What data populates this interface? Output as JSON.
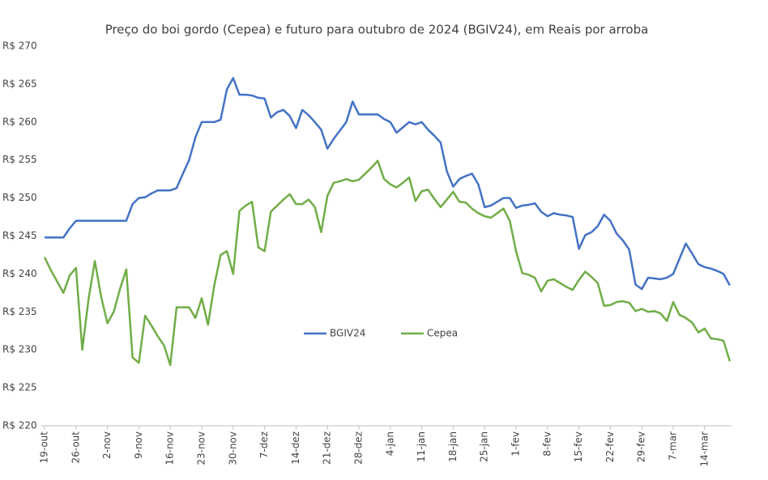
{
  "chart_data": {
    "type": "line",
    "title": "Preço do boi gordo (Cepea) e futuro para outubro de 2024 (BGIV24), em Reais por arroba",
    "categories": [
      "19-out",
      null,
      null,
      null,
      null,
      "26-out",
      null,
      null,
      null,
      null,
      "2-nov",
      null,
      null,
      null,
      null,
      "9-nov",
      null,
      null,
      null,
      null,
      "16-nov",
      null,
      null,
      null,
      null,
      "23-nov",
      null,
      null,
      null,
      null,
      "30-nov",
      null,
      null,
      null,
      null,
      "7-dez",
      null,
      null,
      null,
      null,
      "14-dez",
      null,
      null,
      null,
      null,
      "21-dez",
      null,
      null,
      null,
      null,
      "28-dez",
      null,
      null,
      null,
      null,
      "4-jan",
      null,
      null,
      null,
      null,
      "11-jan",
      null,
      null,
      null,
      null,
      "18-jan",
      null,
      null,
      null,
      null,
      "25-jan",
      null,
      null,
      null,
      null,
      "1-fev",
      null,
      null,
      null,
      null,
      "8-fev",
      null,
      null,
      null,
      null,
      "15-fev",
      null,
      null,
      null,
      null,
      "22-fev",
      null,
      null,
      null,
      null,
      "29-fev",
      null,
      null,
      null,
      null,
      "7-mar",
      null,
      null,
      null,
      null,
      "14-mar",
      null,
      null,
      null,
      null
    ],
    "series": [
      {
        "name": "BGIV24",
        "color": "#4472c4",
        "values": [
          244.8,
          244.8,
          244.8,
          244.8,
          246,
          247,
          247,
          247,
          247,
          247,
          247,
          247,
          247,
          247,
          249.2,
          250,
          250.1,
          250.6,
          251,
          251,
          251,
          251.3,
          253.2,
          255,
          258,
          260,
          260,
          260,
          260.3,
          264.3,
          265.8,
          263.6,
          263.6,
          263.5,
          263.2,
          263.1,
          260.6,
          261.3,
          261.6,
          260.8,
          259.2,
          261.6,
          260.9,
          260,
          259,
          256.5,
          257.8,
          258.9,
          260,
          262.7,
          261,
          261,
          261,
          261,
          260.4,
          260,
          258.6,
          259.3,
          260,
          259.7,
          260,
          259,
          258.2,
          257.3,
          253.5,
          251.5,
          252.5,
          252.9,
          253.2,
          251.8,
          248.8,
          249,
          249.5,
          250,
          250,
          248.7,
          249,
          249.1,
          249.3,
          248.2,
          247.6,
          248,
          247.8,
          247.7,
          247.5,
          243.3,
          245.1,
          245.5,
          246.3,
          247.8,
          247,
          245.3,
          244.4,
          243.2,
          238.6,
          238,
          239.5,
          239.4,
          239.3,
          239.5,
          240,
          242,
          244,
          242.7,
          241.3,
          240.9,
          240.7,
          240.4,
          240,
          238.5
        ]
      },
      {
        "name": "Cepea",
        "color": "#70ad47",
        "values": [
          242.2,
          240.5,
          239,
          237.5,
          239.8,
          240.8,
          230,
          236.7,
          241.7,
          237,
          233.5,
          235,
          238,
          240.6,
          229,
          228.3,
          234.5,
          233.2,
          231.8,
          230.6,
          228,
          235.6,
          235.6,
          235.6,
          234.2,
          236.8,
          233.3,
          238.5,
          242.5,
          243,
          240,
          248.3,
          249,
          249.5,
          243.5,
          243,
          248.2,
          249,
          249.8,
          250.5,
          249.2,
          249.2,
          249.8,
          248.8,
          245.5,
          250.3,
          252,
          252.2,
          252.5,
          252.2,
          252.4,
          253.2,
          254,
          254.9,
          252.5,
          251.8,
          251.4,
          252,
          252.7,
          249.6,
          250.9,
          251.1,
          249.9,
          248.8,
          249.8,
          250.8,
          249.5,
          249.4,
          248.6,
          248,
          247.6,
          247.4,
          248,
          248.6,
          247,
          243,
          240.1,
          239.9,
          239.5,
          237.7,
          239.1,
          239.3,
          238.8,
          238.3,
          237.9,
          239.2,
          240.3,
          239.6,
          238.8,
          235.8,
          235.9,
          236.3,
          236.4,
          236.2,
          235.1,
          235.4,
          235,
          235.1,
          234.8,
          233.8,
          236.3,
          234.6,
          234.2,
          233.6,
          232.3,
          232.8,
          231.5,
          231.4,
          231.2,
          228.5
        ]
      }
    ],
    "ylim": [
      220,
      270
    ],
    "yticks": [
      {
        "value": 220,
        "label": "R$ 220"
      },
      {
        "value": 225,
        "label": "R$ 225"
      },
      {
        "value": 230,
        "label": "R$ 230"
      },
      {
        "value": 235,
        "label": "R$ 235"
      },
      {
        "value": 240,
        "label": "R$ 240"
      },
      {
        "value": 245,
        "label": "R$ 245"
      },
      {
        "value": 250,
        "label": "R$ 250"
      },
      {
        "value": 255,
        "label": "R$ 255"
      },
      {
        "value": 260,
        "label": "R$ 260"
      },
      {
        "value": 265,
        "label": "R$ 265"
      },
      {
        "value": 270,
        "label": "R$ 270"
      }
    ],
    "grid": false,
    "legend": "center"
  }
}
